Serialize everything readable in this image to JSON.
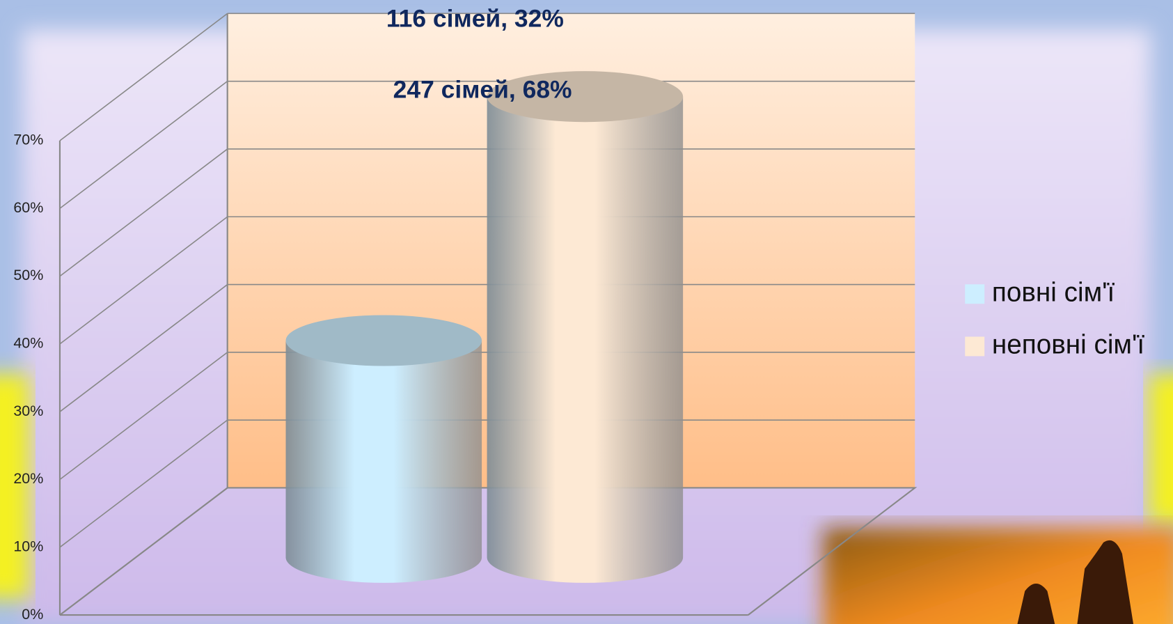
{
  "chart_data": {
    "type": "cylinder",
    "categories": [
      null
    ],
    "series": [
      {
        "name": "повні сім'ї",
        "color": "#cdeeff",
        "values": [
          32
        ],
        "value_labels": [
          "116 сімей, 32%"
        ]
      },
      {
        "name": "неповні сім'ї",
        "color": "#fde9d4",
        "values": [
          68
        ],
        "value_labels": [
          "247 сімей, 68%"
        ]
      }
    ],
    "ylim": [
      0,
      70
    ],
    "yticks": [
      {
        "value": 0,
        "label": "0%"
      },
      {
        "value": 10,
        "label": "10%"
      },
      {
        "value": 20,
        "label": "20%"
      },
      {
        "value": 30,
        "label": "30%"
      },
      {
        "value": 40,
        "label": "40%"
      },
      {
        "value": 50,
        "label": "50%"
      },
      {
        "value": 60,
        "label": "60%"
      },
      {
        "value": 70,
        "label": "70%"
      }
    ],
    "grid": true,
    "legend": "right"
  }
}
